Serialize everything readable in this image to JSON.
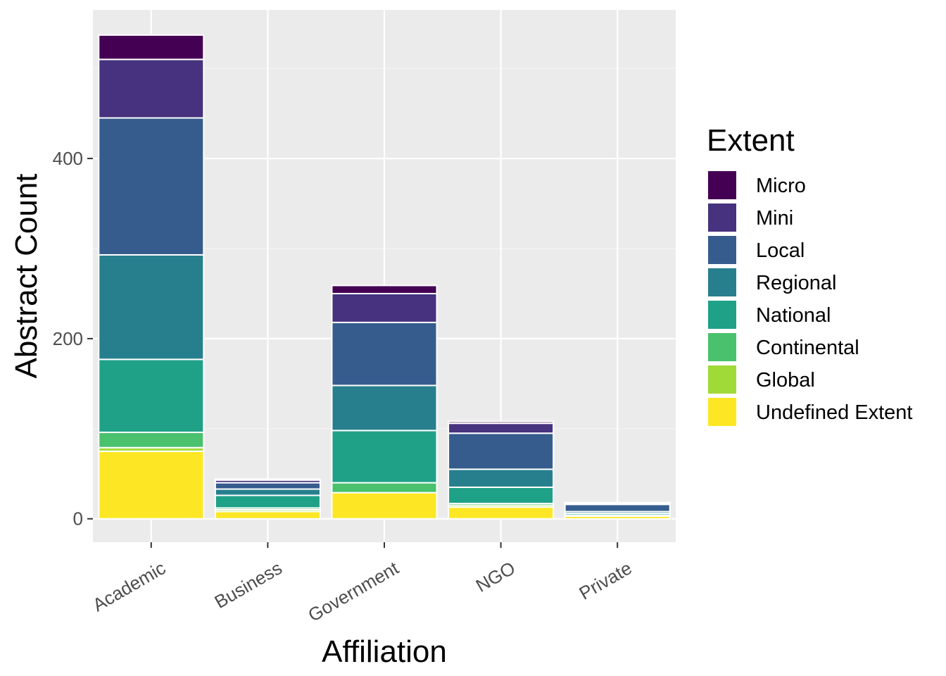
{
  "chart_data": {
    "type": "bar",
    "stacked": true,
    "title": "",
    "xlabel": "Affiliation",
    "ylabel": "Abstract Count",
    "ylim": [
      -26,
      565
    ],
    "y_ticks": [
      0,
      200,
      400
    ],
    "grid": true,
    "legend_position": "right",
    "legend_title": "Extent",
    "categories": [
      "Academic",
      "Business",
      "Government",
      "NGO",
      "Private"
    ],
    "series": [
      {
        "name": "Undefined Extent",
        "color": "#FDE725",
        "values": [
          75,
          8,
          29,
          13,
          3
        ]
      },
      {
        "name": "Global",
        "color": "#A0DA39",
        "values": [
          4,
          2,
          0,
          2,
          0
        ]
      },
      {
        "name": "Continental",
        "color": "#4AC16D",
        "values": [
          17,
          2,
          11,
          2,
          1
        ]
      },
      {
        "name": "National",
        "color": "#1FA187",
        "values": [
          81,
          14,
          58,
          18,
          2
        ]
      },
      {
        "name": "Regional",
        "color": "#277F8E",
        "values": [
          116,
          7,
          50,
          20,
          2
        ]
      },
      {
        "name": "Local",
        "color": "#365C8D",
        "values": [
          152,
          7,
          70,
          40,
          8
        ]
      },
      {
        "name": "Mini",
        "color": "#46327E",
        "values": [
          65,
          3,
          32,
          11,
          1
        ]
      },
      {
        "name": "Micro",
        "color": "#440154",
        "values": [
          27,
          1,
          9,
          2,
          1
        ]
      }
    ],
    "legend_order": [
      "Micro",
      "Mini",
      "Local",
      "Regional",
      "National",
      "Continental",
      "Global",
      "Undefined Extent"
    ]
  },
  "colors": {
    "panel_background": "#EBEBEB",
    "grid_major": "#FFFFFF",
    "grid_minor": "#F5F5F5",
    "bar_outline": "#FFFFFF",
    "tick_text": "#4D4D4D",
    "tick_mark": "#333333"
  }
}
